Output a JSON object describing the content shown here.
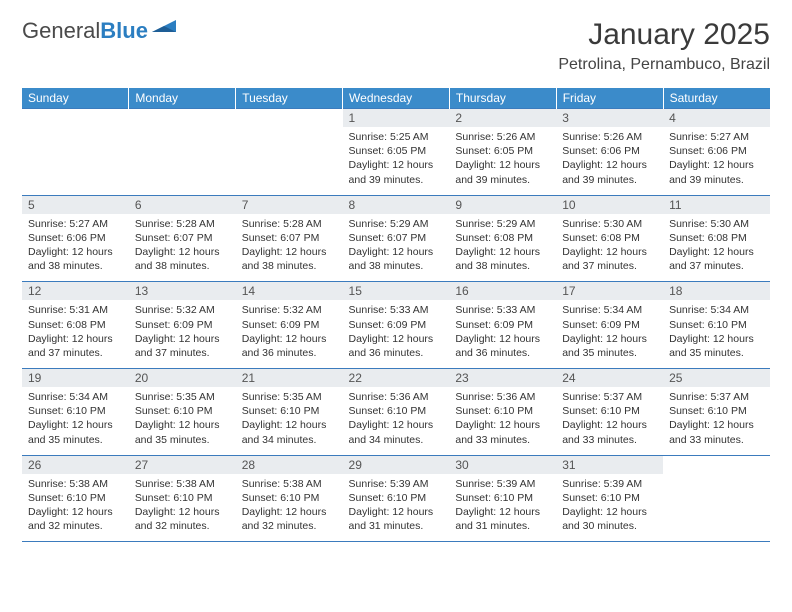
{
  "brand": {
    "text1": "General",
    "text2": "Blue",
    "accent_color": "#2b7ec1"
  },
  "title": "January 2025",
  "location": "Petrolina, Pernambuco, Brazil",
  "header_bg": "#3b8bca",
  "daynum_bg": "#e9ecef",
  "border_color": "#3b7bbd",
  "weekdays": [
    "Sunday",
    "Monday",
    "Tuesday",
    "Wednesday",
    "Thursday",
    "Friday",
    "Saturday"
  ],
  "weeks": [
    [
      {
        "n": "",
        "lines": [
          "",
          "",
          "",
          ""
        ]
      },
      {
        "n": "",
        "lines": [
          "",
          "",
          "",
          ""
        ]
      },
      {
        "n": "",
        "lines": [
          "",
          "",
          "",
          ""
        ]
      },
      {
        "n": "1",
        "lines": [
          "Sunrise: 5:25 AM",
          "Sunset: 6:05 PM",
          "Daylight: 12 hours",
          "and 39 minutes."
        ]
      },
      {
        "n": "2",
        "lines": [
          "Sunrise: 5:26 AM",
          "Sunset: 6:05 PM",
          "Daylight: 12 hours",
          "and 39 minutes."
        ]
      },
      {
        "n": "3",
        "lines": [
          "Sunrise: 5:26 AM",
          "Sunset: 6:06 PM",
          "Daylight: 12 hours",
          "and 39 minutes."
        ]
      },
      {
        "n": "4",
        "lines": [
          "Sunrise: 5:27 AM",
          "Sunset: 6:06 PM",
          "Daylight: 12 hours",
          "and 39 minutes."
        ]
      }
    ],
    [
      {
        "n": "5",
        "lines": [
          "Sunrise: 5:27 AM",
          "Sunset: 6:06 PM",
          "Daylight: 12 hours",
          "and 38 minutes."
        ]
      },
      {
        "n": "6",
        "lines": [
          "Sunrise: 5:28 AM",
          "Sunset: 6:07 PM",
          "Daylight: 12 hours",
          "and 38 minutes."
        ]
      },
      {
        "n": "7",
        "lines": [
          "Sunrise: 5:28 AM",
          "Sunset: 6:07 PM",
          "Daylight: 12 hours",
          "and 38 minutes."
        ]
      },
      {
        "n": "8",
        "lines": [
          "Sunrise: 5:29 AM",
          "Sunset: 6:07 PM",
          "Daylight: 12 hours",
          "and 38 minutes."
        ]
      },
      {
        "n": "9",
        "lines": [
          "Sunrise: 5:29 AM",
          "Sunset: 6:08 PM",
          "Daylight: 12 hours",
          "and 38 minutes."
        ]
      },
      {
        "n": "10",
        "lines": [
          "Sunrise: 5:30 AM",
          "Sunset: 6:08 PM",
          "Daylight: 12 hours",
          "and 37 minutes."
        ]
      },
      {
        "n": "11",
        "lines": [
          "Sunrise: 5:30 AM",
          "Sunset: 6:08 PM",
          "Daylight: 12 hours",
          "and 37 minutes."
        ]
      }
    ],
    [
      {
        "n": "12",
        "lines": [
          "Sunrise: 5:31 AM",
          "Sunset: 6:08 PM",
          "Daylight: 12 hours",
          "and 37 minutes."
        ]
      },
      {
        "n": "13",
        "lines": [
          "Sunrise: 5:32 AM",
          "Sunset: 6:09 PM",
          "Daylight: 12 hours",
          "and 37 minutes."
        ]
      },
      {
        "n": "14",
        "lines": [
          "Sunrise: 5:32 AM",
          "Sunset: 6:09 PM",
          "Daylight: 12 hours",
          "and 36 minutes."
        ]
      },
      {
        "n": "15",
        "lines": [
          "Sunrise: 5:33 AM",
          "Sunset: 6:09 PM",
          "Daylight: 12 hours",
          "and 36 minutes."
        ]
      },
      {
        "n": "16",
        "lines": [
          "Sunrise: 5:33 AM",
          "Sunset: 6:09 PM",
          "Daylight: 12 hours",
          "and 36 minutes."
        ]
      },
      {
        "n": "17",
        "lines": [
          "Sunrise: 5:34 AM",
          "Sunset: 6:09 PM",
          "Daylight: 12 hours",
          "and 35 minutes."
        ]
      },
      {
        "n": "18",
        "lines": [
          "Sunrise: 5:34 AM",
          "Sunset: 6:10 PM",
          "Daylight: 12 hours",
          "and 35 minutes."
        ]
      }
    ],
    [
      {
        "n": "19",
        "lines": [
          "Sunrise: 5:34 AM",
          "Sunset: 6:10 PM",
          "Daylight: 12 hours",
          "and 35 minutes."
        ]
      },
      {
        "n": "20",
        "lines": [
          "Sunrise: 5:35 AM",
          "Sunset: 6:10 PM",
          "Daylight: 12 hours",
          "and 35 minutes."
        ]
      },
      {
        "n": "21",
        "lines": [
          "Sunrise: 5:35 AM",
          "Sunset: 6:10 PM",
          "Daylight: 12 hours",
          "and 34 minutes."
        ]
      },
      {
        "n": "22",
        "lines": [
          "Sunrise: 5:36 AM",
          "Sunset: 6:10 PM",
          "Daylight: 12 hours",
          "and 34 minutes."
        ]
      },
      {
        "n": "23",
        "lines": [
          "Sunrise: 5:36 AM",
          "Sunset: 6:10 PM",
          "Daylight: 12 hours",
          "and 33 minutes."
        ]
      },
      {
        "n": "24",
        "lines": [
          "Sunrise: 5:37 AM",
          "Sunset: 6:10 PM",
          "Daylight: 12 hours",
          "and 33 minutes."
        ]
      },
      {
        "n": "25",
        "lines": [
          "Sunrise: 5:37 AM",
          "Sunset: 6:10 PM",
          "Daylight: 12 hours",
          "and 33 minutes."
        ]
      }
    ],
    [
      {
        "n": "26",
        "lines": [
          "Sunrise: 5:38 AM",
          "Sunset: 6:10 PM",
          "Daylight: 12 hours",
          "and 32 minutes."
        ]
      },
      {
        "n": "27",
        "lines": [
          "Sunrise: 5:38 AM",
          "Sunset: 6:10 PM",
          "Daylight: 12 hours",
          "and 32 minutes."
        ]
      },
      {
        "n": "28",
        "lines": [
          "Sunrise: 5:38 AM",
          "Sunset: 6:10 PM",
          "Daylight: 12 hours",
          "and 32 minutes."
        ]
      },
      {
        "n": "29",
        "lines": [
          "Sunrise: 5:39 AM",
          "Sunset: 6:10 PM",
          "Daylight: 12 hours",
          "and 31 minutes."
        ]
      },
      {
        "n": "30",
        "lines": [
          "Sunrise: 5:39 AM",
          "Sunset: 6:10 PM",
          "Daylight: 12 hours",
          "and 31 minutes."
        ]
      },
      {
        "n": "31",
        "lines": [
          "Sunrise: 5:39 AM",
          "Sunset: 6:10 PM",
          "Daylight: 12 hours",
          "and 30 minutes."
        ]
      },
      {
        "n": "",
        "lines": [
          "",
          "",
          "",
          ""
        ]
      }
    ]
  ]
}
